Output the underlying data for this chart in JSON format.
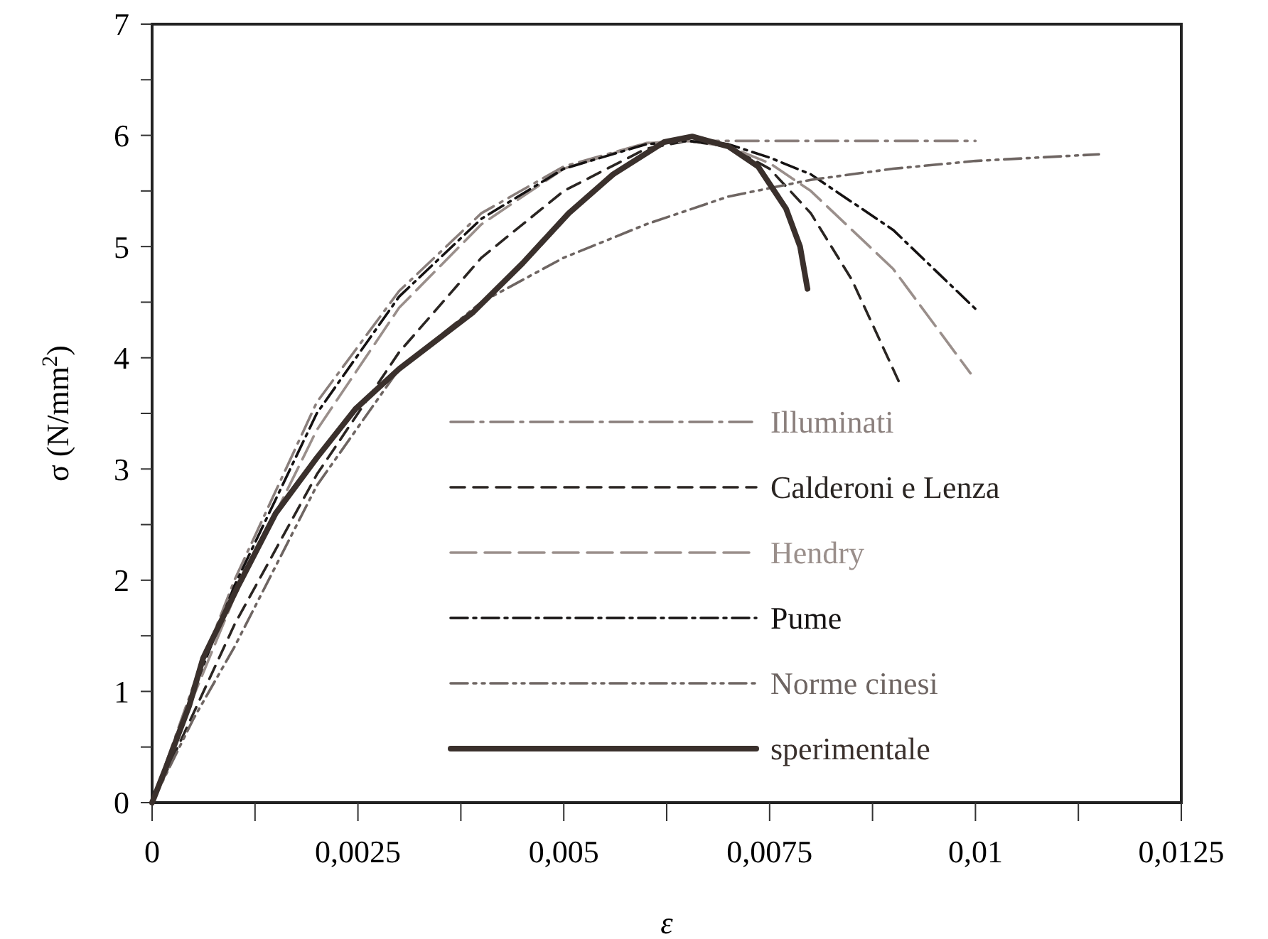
{
  "chart_data": {
    "type": "line",
    "xlabel": "ε",
    "ylabel": "σ (N/mm$^{2}$)",
    "xlim": [
      0,
      0.0125
    ],
    "ylim": [
      0,
      7
    ],
    "xticks": [
      {
        "value": 0,
        "label": "0"
      },
      {
        "value": 0.00125,
        "label": null
      },
      {
        "value": 0.0025,
        "label": "0,0025"
      },
      {
        "value": 0.00375,
        "label": null
      },
      {
        "value": 0.005,
        "label": "0,005"
      },
      {
        "value": 0.00625,
        "label": null
      },
      {
        "value": 0.0075,
        "label": "0,0075"
      },
      {
        "value": 0.00875,
        "label": null
      },
      {
        "value": 0.01,
        "label": "0,01"
      },
      {
        "value": 0.01125,
        "label": null
      },
      {
        "value": 0.0125,
        "label": "0,0125"
      }
    ],
    "yticks": [
      0,
      {
        "value": 0.5,
        "label": null
      },
      1,
      {
        "value": 1.5,
        "label": null
      },
      2,
      {
        "value": 2.5,
        "label": null
      },
      3,
      {
        "value": 3.5,
        "label": null
      },
      4,
      {
        "value": 4.5,
        "label": null
      },
      5,
      {
        "value": 5.5,
        "label": null
      },
      6,
      {
        "value": 6.5,
        "label": null
      },
      7
    ],
    "legend": "bottom right",
    "grid": false,
    "marker": "none",
    "series": [
      {
        "name": "Illuminati",
        "color": "#8a7f7c",
        "line_style": "dashed",
        "x": [
          0,
          0.0005,
          0.001,
          0.002,
          0.003,
          0.004,
          0.005,
          0.006,
          0.0065,
          0.01
        ],
        "values": [
          0,
          1.05,
          2.0,
          3.6,
          4.6,
          5.3,
          5.72,
          5.93,
          5.95,
          5.95
        ]
      },
      {
        "name": "Calderoni e Lenza",
        "color": "#2a2522",
        "line_style": "dashed",
        "x": [
          0,
          0.0005,
          0.001,
          0.002,
          0.003,
          0.004,
          0.005,
          0.006,
          0.0065,
          0.007,
          0.0075,
          0.008,
          0.0085,
          0.00908
        ],
        "values": [
          0,
          0.8,
          1.6,
          2.95,
          4.05,
          4.9,
          5.5,
          5.88,
          5.95,
          5.9,
          5.7,
          5.3,
          4.7,
          3.77
        ]
      },
      {
        "name": "Hendry",
        "color": "#9a8f8b",
        "line_style": "dashed",
        "x": [
          0,
          0.0005,
          0.001,
          0.002,
          0.003,
          0.004,
          0.005,
          0.006,
          0.0065,
          0.007,
          0.0075,
          0.008,
          0.009,
          0.00994
        ],
        "values": [
          0,
          0.95,
          1.85,
          3.35,
          4.45,
          5.2,
          5.7,
          5.93,
          5.95,
          5.9,
          5.75,
          5.5,
          4.8,
          3.86
        ]
      },
      {
        "name": "Pume",
        "color": "#151212",
        "line_style": "dashed",
        "x": [
          0,
          0.0005,
          0.001,
          0.002,
          0.003,
          0.004,
          0.005,
          0.006,
          0.0065,
          0.007,
          0.0075,
          0.008,
          0.009,
          0.01
        ],
        "values": [
          0,
          1.0,
          1.95,
          3.5,
          4.55,
          5.25,
          5.7,
          5.92,
          5.95,
          5.92,
          5.8,
          5.65,
          5.15,
          4.44
        ]
      },
      {
        "name": "Norme cinesi",
        "color": "#6e6562",
        "line_style": "dashed",
        "x": [
          0,
          0.0005,
          0.001,
          0.002,
          0.003,
          0.004,
          0.005,
          0.006,
          0.007,
          0.008,
          0.009,
          0.01,
          0.0115
        ],
        "values": [
          0,
          0.75,
          1.4,
          2.85,
          3.9,
          4.5,
          4.9,
          5.2,
          5.45,
          5.6,
          5.7,
          5.77,
          5.83
        ]
      },
      {
        "name": "sperimentale",
        "color": "#3a302c",
        "line_style": "solid",
        "x": [
          0,
          0.00017,
          0.00045,
          0.00062,
          0.00104,
          0.0015,
          0.002,
          0.00247,
          0.003,
          0.0039,
          0.0045,
          0.00506,
          0.0056,
          0.00622,
          0.00656,
          0.007,
          0.00736,
          0.0077,
          0.00787,
          0.00796
        ],
        "values": [
          0,
          0.32,
          0.87,
          1.3,
          1.94,
          2.6,
          3.1,
          3.54,
          3.9,
          4.41,
          4.85,
          5.3,
          5.65,
          5.94,
          5.99,
          5.9,
          5.72,
          5.34,
          5.0,
          4.62
        ]
      }
    ]
  }
}
